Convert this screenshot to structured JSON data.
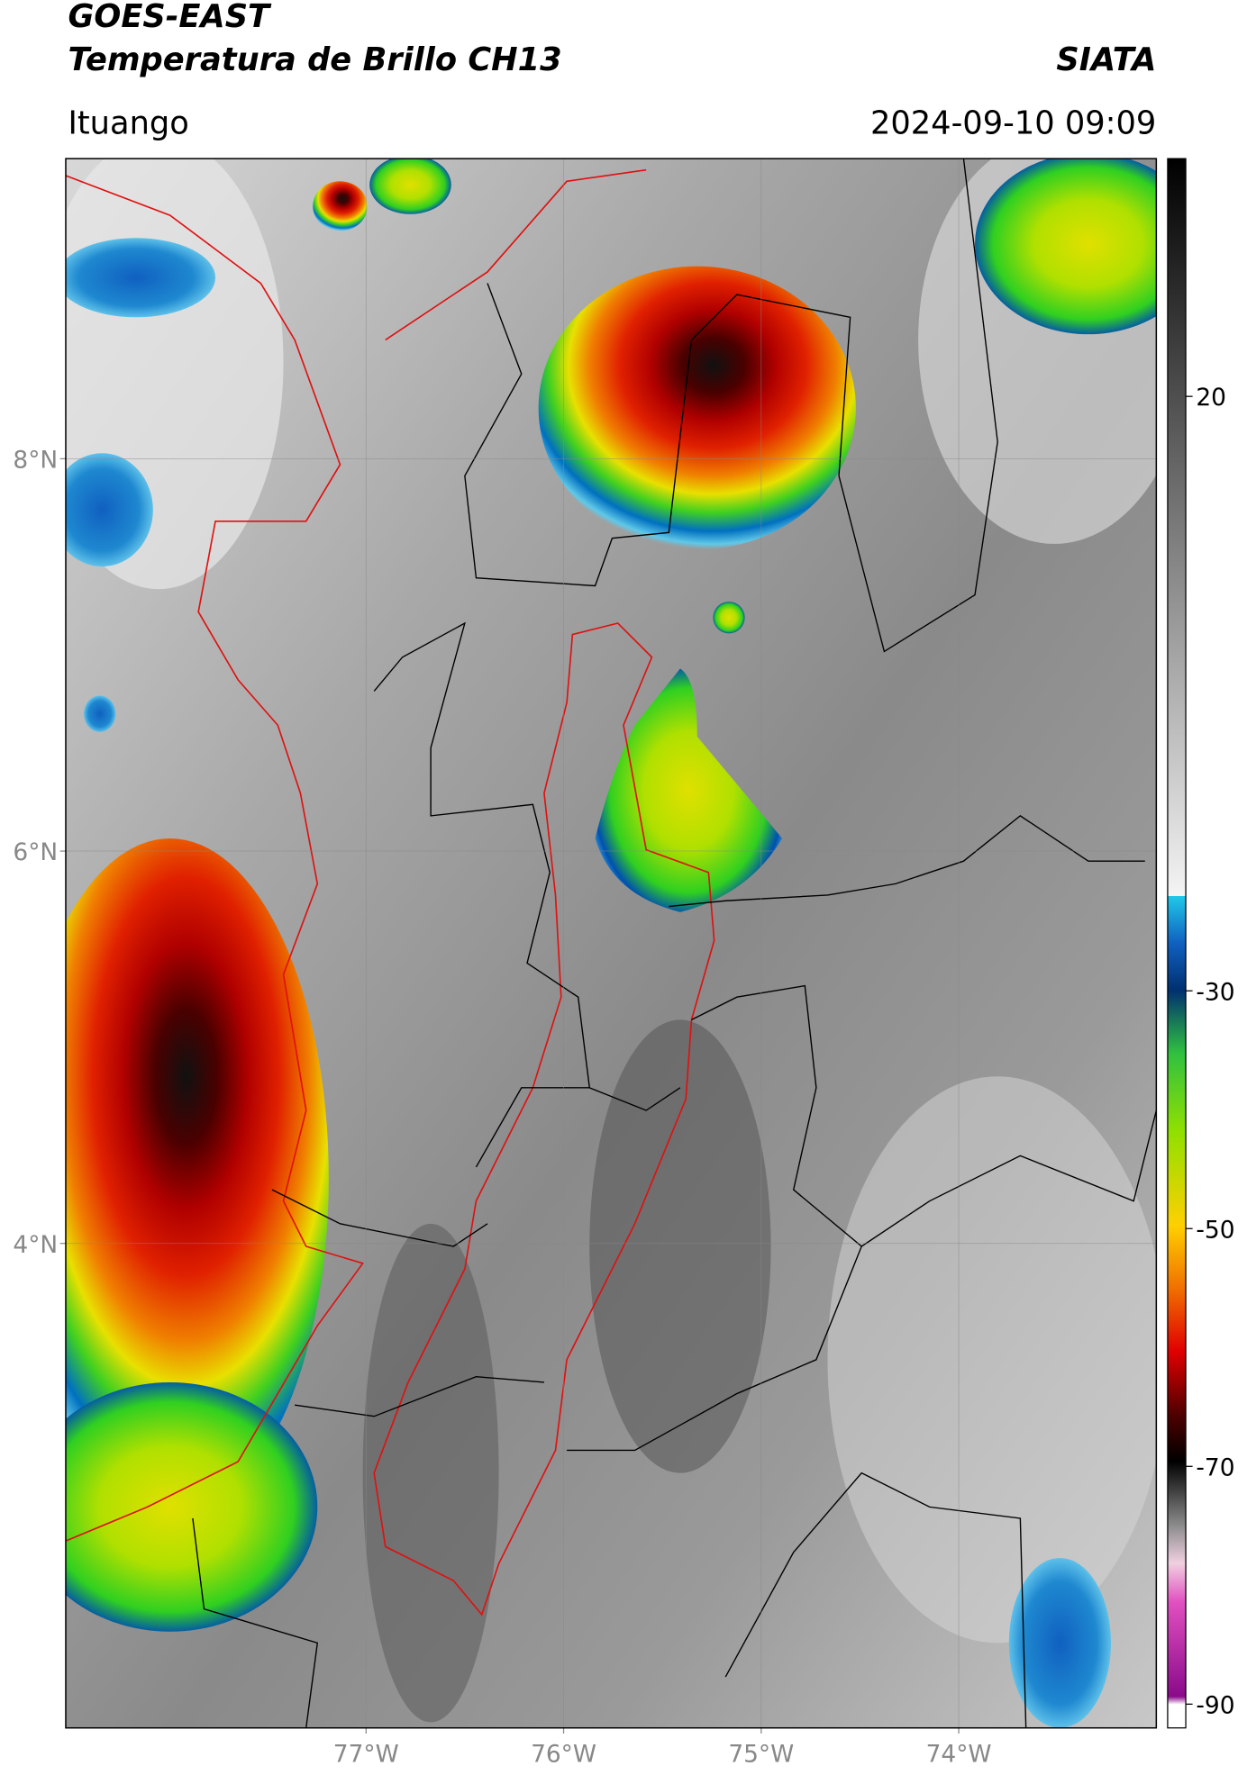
{
  "header": {
    "title": "GOES-EAST",
    "subtitle": "Temperatura de Brillo CH13",
    "source": "SIATA",
    "location": "Ituango",
    "datetime": "2024-09-10 09:09"
  },
  "map": {
    "latlim": [
      1.53,
      9.53
    ],
    "lonlim": [
      -78.52,
      -73.0
    ],
    "lat_ticks": [
      {
        "value": 8,
        "label": "8°N"
      },
      {
        "value": 6,
        "label": "6°N"
      },
      {
        "value": 4,
        "label": "4°N"
      }
    ],
    "lon_ticks": [
      {
        "value": -77,
        "label": "77°W"
      },
      {
        "value": -76,
        "label": "76°W"
      },
      {
        "value": -75,
        "label": "75°W"
      },
      {
        "value": -74,
        "label": "74°W"
      }
    ]
  },
  "colorbar": {
    "lim": [
      -92,
      40
    ],
    "ticks": [
      20,
      -30,
      -50,
      -70,
      -90
    ]
  }
}
